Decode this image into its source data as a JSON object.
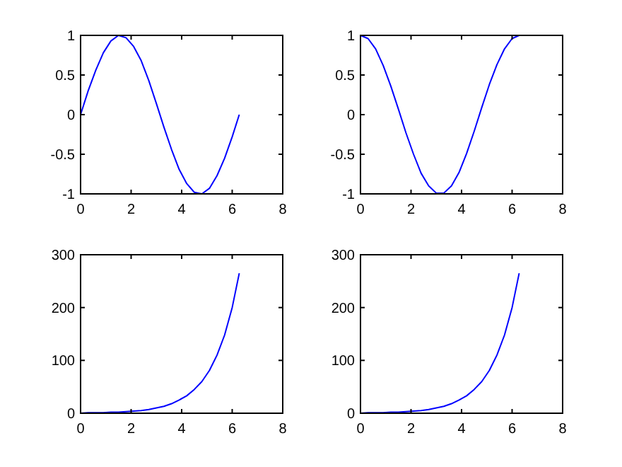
{
  "chart_data": [
    {
      "type": "line",
      "x": [
        0,
        0.3,
        0.6,
        0.9,
        1.2,
        1.5,
        1.8,
        2.1,
        2.4,
        2.7,
        3.0,
        3.3,
        3.6,
        3.9,
        4.2,
        4.5,
        4.8,
        5.1,
        5.4,
        5.7,
        6.0,
        6.28
      ],
      "series": [
        {
          "color": "#0000ff",
          "values": [
            0,
            0.3,
            0.56,
            0.78,
            0.93,
            1.0,
            0.97,
            0.86,
            0.68,
            0.43,
            0.14,
            -0.16,
            -0.44,
            -0.69,
            -0.87,
            -0.98,
            -1.0,
            -0.93,
            -0.77,
            -0.55,
            -0.28,
            0
          ]
        }
      ],
      "xlim": [
        0,
        8
      ],
      "xticks": [
        0,
        2,
        4,
        6,
        8
      ],
      "ylim": [
        -1,
        1
      ],
      "yticks": [
        -1,
        -0.5,
        0,
        0.5,
        1
      ],
      "grid": false
    },
    {
      "type": "line",
      "x": [
        0,
        0.3,
        0.6,
        0.9,
        1.2,
        1.5,
        1.8,
        2.1,
        2.4,
        2.7,
        3.0,
        3.3,
        3.6,
        3.9,
        4.2,
        4.5,
        4.8,
        5.1,
        5.4,
        5.7,
        6.0,
        6.28
      ],
      "series": [
        {
          "color": "#0000ff",
          "values": [
            1,
            0.96,
            0.83,
            0.62,
            0.36,
            0.07,
            -0.23,
            -0.5,
            -0.74,
            -0.9,
            -0.99,
            -0.99,
            -0.9,
            -0.73,
            -0.49,
            -0.21,
            0.09,
            0.38,
            0.63,
            0.83,
            0.96,
            1
          ]
        }
      ],
      "xlim": [
        0,
        8
      ],
      "xticks": [
        0,
        2,
        4,
        6,
        8
      ],
      "ylim": [
        -1,
        1
      ],
      "yticks": [
        -1,
        -0.5,
        0,
        0.5,
        1
      ],
      "grid": false
    },
    {
      "type": "line",
      "x": [
        0,
        0.3,
        0.6,
        0.9,
        1.2,
        1.5,
        1.8,
        2.1,
        2.4,
        2.7,
        3.0,
        3.3,
        3.6,
        3.9,
        4.2,
        4.5,
        4.8,
        5.1,
        5.4,
        5.7,
        6.0,
        6.28
      ],
      "series": [
        {
          "color": "#0000ff",
          "values": [
            0,
            1,
            1,
            1,
            2,
            2,
            3,
            4,
            5,
            7,
            10,
            13,
            18,
            25,
            33,
            45,
            60,
            81,
            110,
            148,
            200,
            265
          ]
        }
      ],
      "xlim": [
        0,
        8
      ],
      "xticks": [
        0,
        2,
        4,
        6,
        8
      ],
      "ylim": [
        0,
        300
      ],
      "yticks": [
        0,
        100,
        200,
        300
      ],
      "grid": false
    },
    {
      "type": "line",
      "x": [
        0,
        0.3,
        0.6,
        0.9,
        1.2,
        1.5,
        1.8,
        2.1,
        2.4,
        2.7,
        3.0,
        3.3,
        3.6,
        3.9,
        4.2,
        4.5,
        4.8,
        5.1,
        5.4,
        5.7,
        6.0,
        6.28
      ],
      "series": [
        {
          "color": "#0000ff",
          "values": [
            0,
            1,
            1,
            1,
            2,
            2,
            3,
            4,
            5,
            7,
            10,
            13,
            18,
            25,
            33,
            45,
            60,
            81,
            110,
            148,
            200,
            265
          ]
        }
      ],
      "xlim": [
        0,
        8
      ],
      "xticks": [
        0,
        2,
        4,
        6,
        8
      ],
      "ylim": [
        0,
        300
      ],
      "yticks": [
        0,
        100,
        200,
        300
      ],
      "grid": false
    }
  ]
}
